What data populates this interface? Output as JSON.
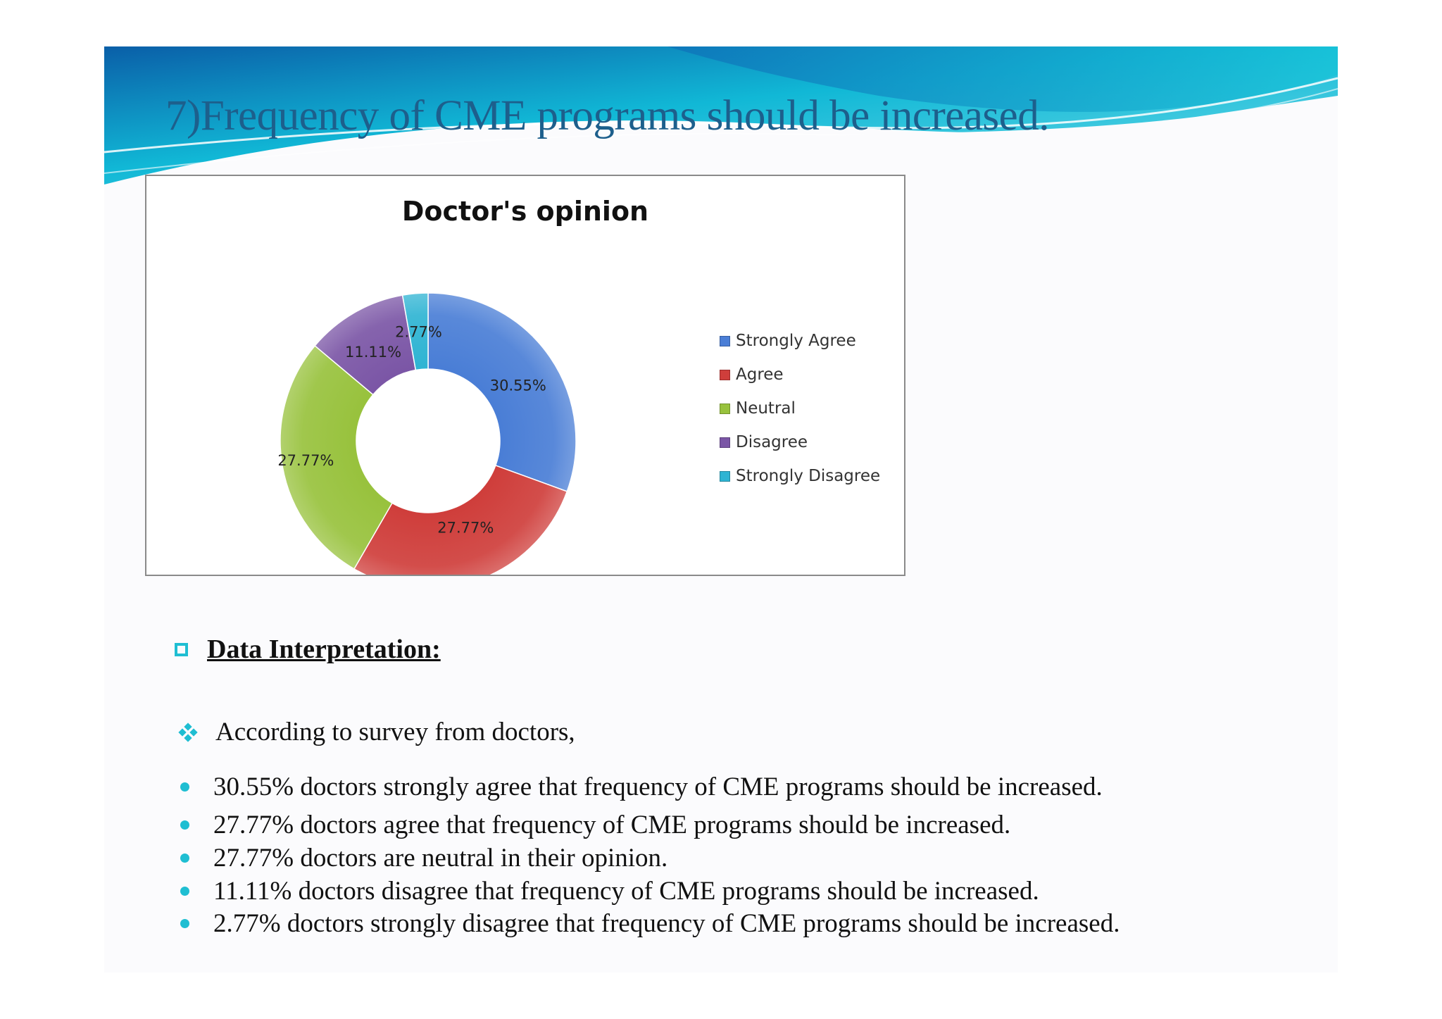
{
  "slide": {
    "title": "7)Frequency of CME programs should be increased."
  },
  "chart_data": {
    "type": "pie",
    "variant": "doughnut",
    "title": "Doctor's opinion",
    "categories": [
      "Strongly Agree",
      "Agree",
      "Neutral",
      "Disagree",
      "Strongly Disagree"
    ],
    "values": [
      30.55,
      27.77,
      27.77,
      11.11,
      2.77
    ],
    "data_labels": [
      "30.55%",
      "27.77%",
      "27.77%",
      "11.11%",
      "2.77%"
    ],
    "colors": [
      "#4a7ed6",
      "#cf3e3b",
      "#98c23d",
      "#7b56a6",
      "#2fb4d3"
    ],
    "legend_position": "right",
    "start_angle_deg": 0,
    "direction": "clockwise"
  },
  "interpretation": {
    "heading": "Data Interpretation:",
    "intro": "According to survey from doctors,",
    "bullets": [
      "30.55% doctors strongly agree that frequency of CME programs should be increased.",
      "27.77% doctors agree that frequency of CME programs should be increased.",
      "27.77% doctors are neutral in their opinion.",
      "11.11% doctors disagree that frequency of CME programs should be increased.",
      "2.77% doctors strongly disagree that frequency of CME programs should be increased."
    ]
  },
  "icons": {
    "heading_bullet": "checkbox-icon",
    "intro_bullet": "diamond-cluster-icon",
    "list_bullet": "dot-icon"
  },
  "theme": {
    "accent": "#1fbed2",
    "title_color": "#1d5f8c",
    "header_gradient": [
      "#0a5fa8",
      "#11b8d6",
      "#5fd7e6"
    ]
  }
}
